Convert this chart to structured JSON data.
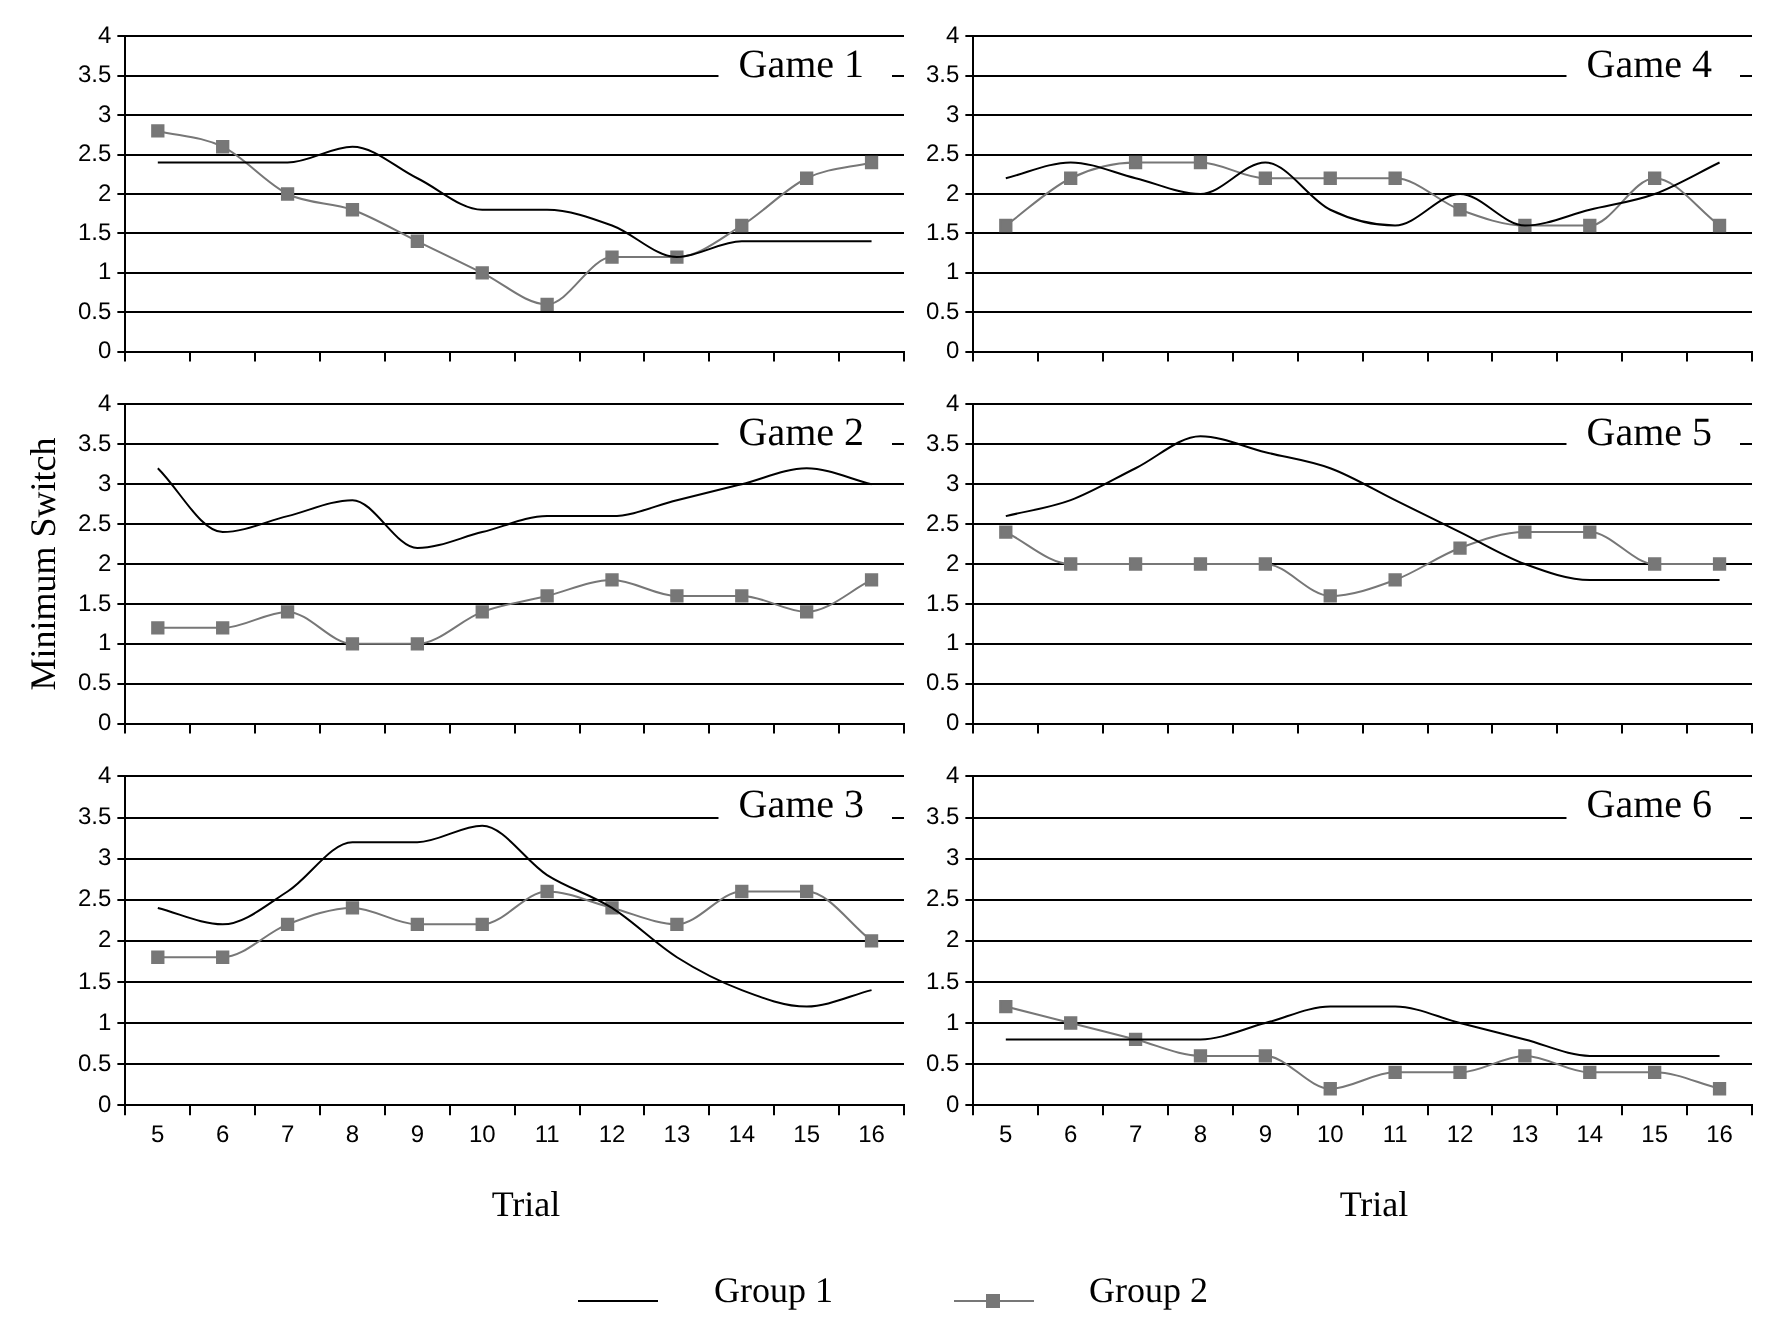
{
  "chart_data": [
    {
      "type": "line",
      "title": "Game 1",
      "legend": "bottom",
      "categories": [
        "5",
        "6",
        "7",
        "8",
        "9",
        "10",
        "11",
        "12",
        "13",
        "14",
        "15",
        "16"
      ],
      "ylim": [
        0,
        4
      ],
      "yticks": [
        0,
        0.5,
        1,
        1.5,
        2,
        2.5,
        3,
        3.5,
        4
      ],
      "grid": "y",
      "tick_labels": "y",
      "series": [
        {
          "name": "Group 1",
          "color": "#000000",
          "marker": "none",
          "values": [
            2.4,
            2.4,
            2.4,
            2.6,
            2.2,
            1.8,
            1.8,
            1.6,
            1.2,
            1.4,
            1.4,
            1.4
          ]
        },
        {
          "name": "Group 2",
          "color": "#777777",
          "marker": "square",
          "values": [
            2.8,
            2.6,
            2.0,
            1.8,
            1.4,
            1.0,
            0.6,
            1.2,
            1.2,
            1.6,
            2.2,
            2.4
          ]
        }
      ]
    },
    {
      "type": "line",
      "title": "Game 4",
      "categories": [
        "5",
        "6",
        "7",
        "8",
        "9",
        "10",
        "11",
        "12",
        "13",
        "14",
        "15",
        "16"
      ],
      "ylim": [
        0,
        4
      ],
      "yticks": [
        0,
        0.5,
        1,
        1.5,
        2,
        2.5,
        3,
        3.5,
        4
      ],
      "grid": "y",
      "tick_labels": "y",
      "series": [
        {
          "color": "#000000",
          "marker": "none",
          "values": [
            2.2,
            2.4,
            2.2,
            2.0,
            2.4,
            1.8,
            1.6,
            2.0,
            1.6,
            1.8,
            2.0,
            2.4
          ]
        },
        {
          "color": "#777777",
          "marker": "square",
          "values": [
            1.6,
            2.2,
            2.4,
            2.4,
            2.2,
            2.2,
            2.2,
            1.8,
            1.6,
            1.6,
            2.2,
            1.6
          ]
        }
      ]
    },
    {
      "type": "line",
      "title": "Game 2",
      "ylabel": "Minimum Switch",
      "categories": [
        "5",
        "6",
        "7",
        "8",
        "9",
        "10",
        "11",
        "12",
        "13",
        "14",
        "15",
        "16"
      ],
      "ylim": [
        0,
        4
      ],
      "yticks": [
        0,
        0.5,
        1,
        1.5,
        2,
        2.5,
        3,
        3.5,
        4
      ],
      "grid": "y",
      "tick_labels": "y",
      "series": [
        {
          "color": "#000000",
          "marker": "none",
          "values": [
            3.2,
            2.4,
            2.6,
            2.8,
            2.2,
            2.4,
            2.6,
            2.6,
            2.8,
            3.0,
            3.2,
            3.0
          ]
        },
        {
          "color": "#777777",
          "marker": "square",
          "values": [
            1.2,
            1.2,
            1.4,
            1.0,
            1.0,
            1.4,
            1.6,
            1.8,
            1.6,
            1.6,
            1.4,
            1.8
          ]
        }
      ]
    },
    {
      "type": "line",
      "title": "Game 5",
      "categories": [
        "5",
        "6",
        "7",
        "8",
        "9",
        "10",
        "11",
        "12",
        "13",
        "14",
        "15",
        "16"
      ],
      "ylim": [
        0,
        4
      ],
      "yticks": [
        0,
        0.5,
        1,
        1.5,
        2,
        2.5,
        3,
        3.5,
        4
      ],
      "grid": "y",
      "tick_labels": "y",
      "series": [
        {
          "color": "#000000",
          "marker": "none",
          "values": [
            2.6,
            2.8,
            3.2,
            3.6,
            3.4,
            3.2,
            2.8,
            2.4,
            2.0,
            1.8,
            1.8,
            1.8
          ]
        },
        {
          "color": "#777777",
          "marker": "square",
          "values": [
            2.4,
            2.0,
            2.0,
            2.0,
            2.0,
            1.6,
            1.8,
            2.2,
            2.4,
            2.4,
            2.0,
            2.0
          ]
        }
      ]
    },
    {
      "type": "line",
      "title": "Game 3",
      "xlabel": "Trial",
      "categories": [
        "5",
        "6",
        "7",
        "8",
        "9",
        "10",
        "11",
        "12",
        "13",
        "14",
        "15",
        "16"
      ],
      "ylim": [
        0,
        4
      ],
      "yticks": [
        0,
        0.5,
        1,
        1.5,
        2,
        2.5,
        3,
        3.5,
        4
      ],
      "grid": "y",
      "series": [
        {
          "color": "#000000",
          "marker": "none",
          "values": [
            2.4,
            2.2,
            2.6,
            3.2,
            3.2,
            3.4,
            2.8,
            2.4,
            1.8,
            1.4,
            1.2,
            1.4
          ]
        },
        {
          "color": "#777777",
          "marker": "square",
          "values": [
            1.8,
            1.8,
            2.2,
            2.4,
            2.2,
            2.2,
            2.6,
            2.4,
            2.2,
            2.6,
            2.6,
            2.0
          ]
        }
      ]
    },
    {
      "type": "line",
      "title": "Game 6",
      "xlabel": "Trial",
      "categories": [
        "5",
        "6",
        "7",
        "8",
        "9",
        "10",
        "11",
        "12",
        "13",
        "14",
        "15",
        "16"
      ],
      "ylim": [
        0,
        4
      ],
      "yticks": [
        0,
        0.5,
        1,
        1.5,
        2,
        2.5,
        3,
        3.5,
        4
      ],
      "grid": "y",
      "series": [
        {
          "color": "#000000",
          "marker": "none",
          "values": [
            0.8,
            0.8,
            0.8,
            0.8,
            1.0,
            1.2,
            1.2,
            1.0,
            0.8,
            0.6,
            0.6,
            0.6
          ]
        },
        {
          "color": "#777777",
          "marker": "square",
          "values": [
            1.2,
            1.0,
            0.8,
            0.6,
            0.6,
            0.2,
            0.4,
            0.4,
            0.6,
            0.4,
            0.4,
            0.2
          ]
        }
      ]
    }
  ]
}
